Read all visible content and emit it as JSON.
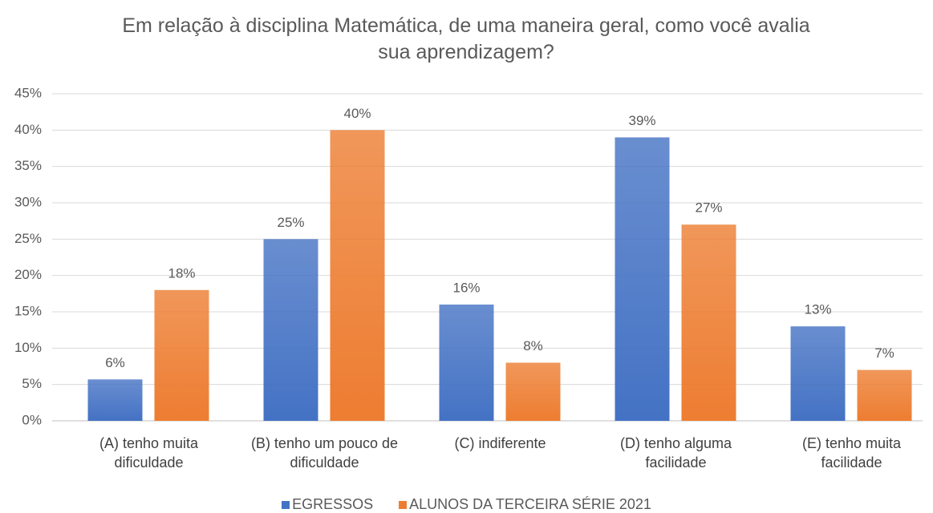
{
  "chart_data": {
    "type": "bar",
    "title": "Em relação à disciplina Matemática, de uma maneira geral, como você avalia sua aprendizagem?",
    "categories": [
      "(A) tenho muita dificuldade",
      "(B) tenho um pouco de dificuldade",
      "(C) indiferente",
      "(D) tenho alguma facilidade",
      "(E) tenho muita facilidade"
    ],
    "series": [
      {
        "name": "EGRESSOS",
        "color": "#4472c4",
        "values": [
          5.7,
          25,
          16,
          39,
          13
        ],
        "value_labels": [
          "6%",
          "25%",
          "16%",
          "39%",
          "13%"
        ]
      },
      {
        "name": "ALUNOS DA TERCEIRA SÉRIE 2021",
        "color": "#ed7d31",
        "values": [
          18,
          40,
          8,
          27,
          7
        ],
        "value_labels": [
          "18%",
          "40%",
          "8%",
          "27%",
          "7%"
        ]
      }
    ],
    "ylim": [
      0,
      45
    ],
    "yticks": [
      {
        "value": 0,
        "label": "0%"
      },
      {
        "value": 5,
        "label": "5%"
      },
      {
        "value": 10,
        "label": "10%"
      },
      {
        "value": 15,
        "label": "15%"
      },
      {
        "value": 20,
        "label": "20%"
      },
      {
        "value": 25,
        "label": "25%"
      },
      {
        "value": 30,
        "label": "30%"
      },
      {
        "value": 35,
        "label": "35%"
      },
      {
        "value": 40,
        "label": "40%"
      },
      {
        "value": 45,
        "label": "45%"
      }
    ],
    "grid": true,
    "legend": "bottom"
  }
}
